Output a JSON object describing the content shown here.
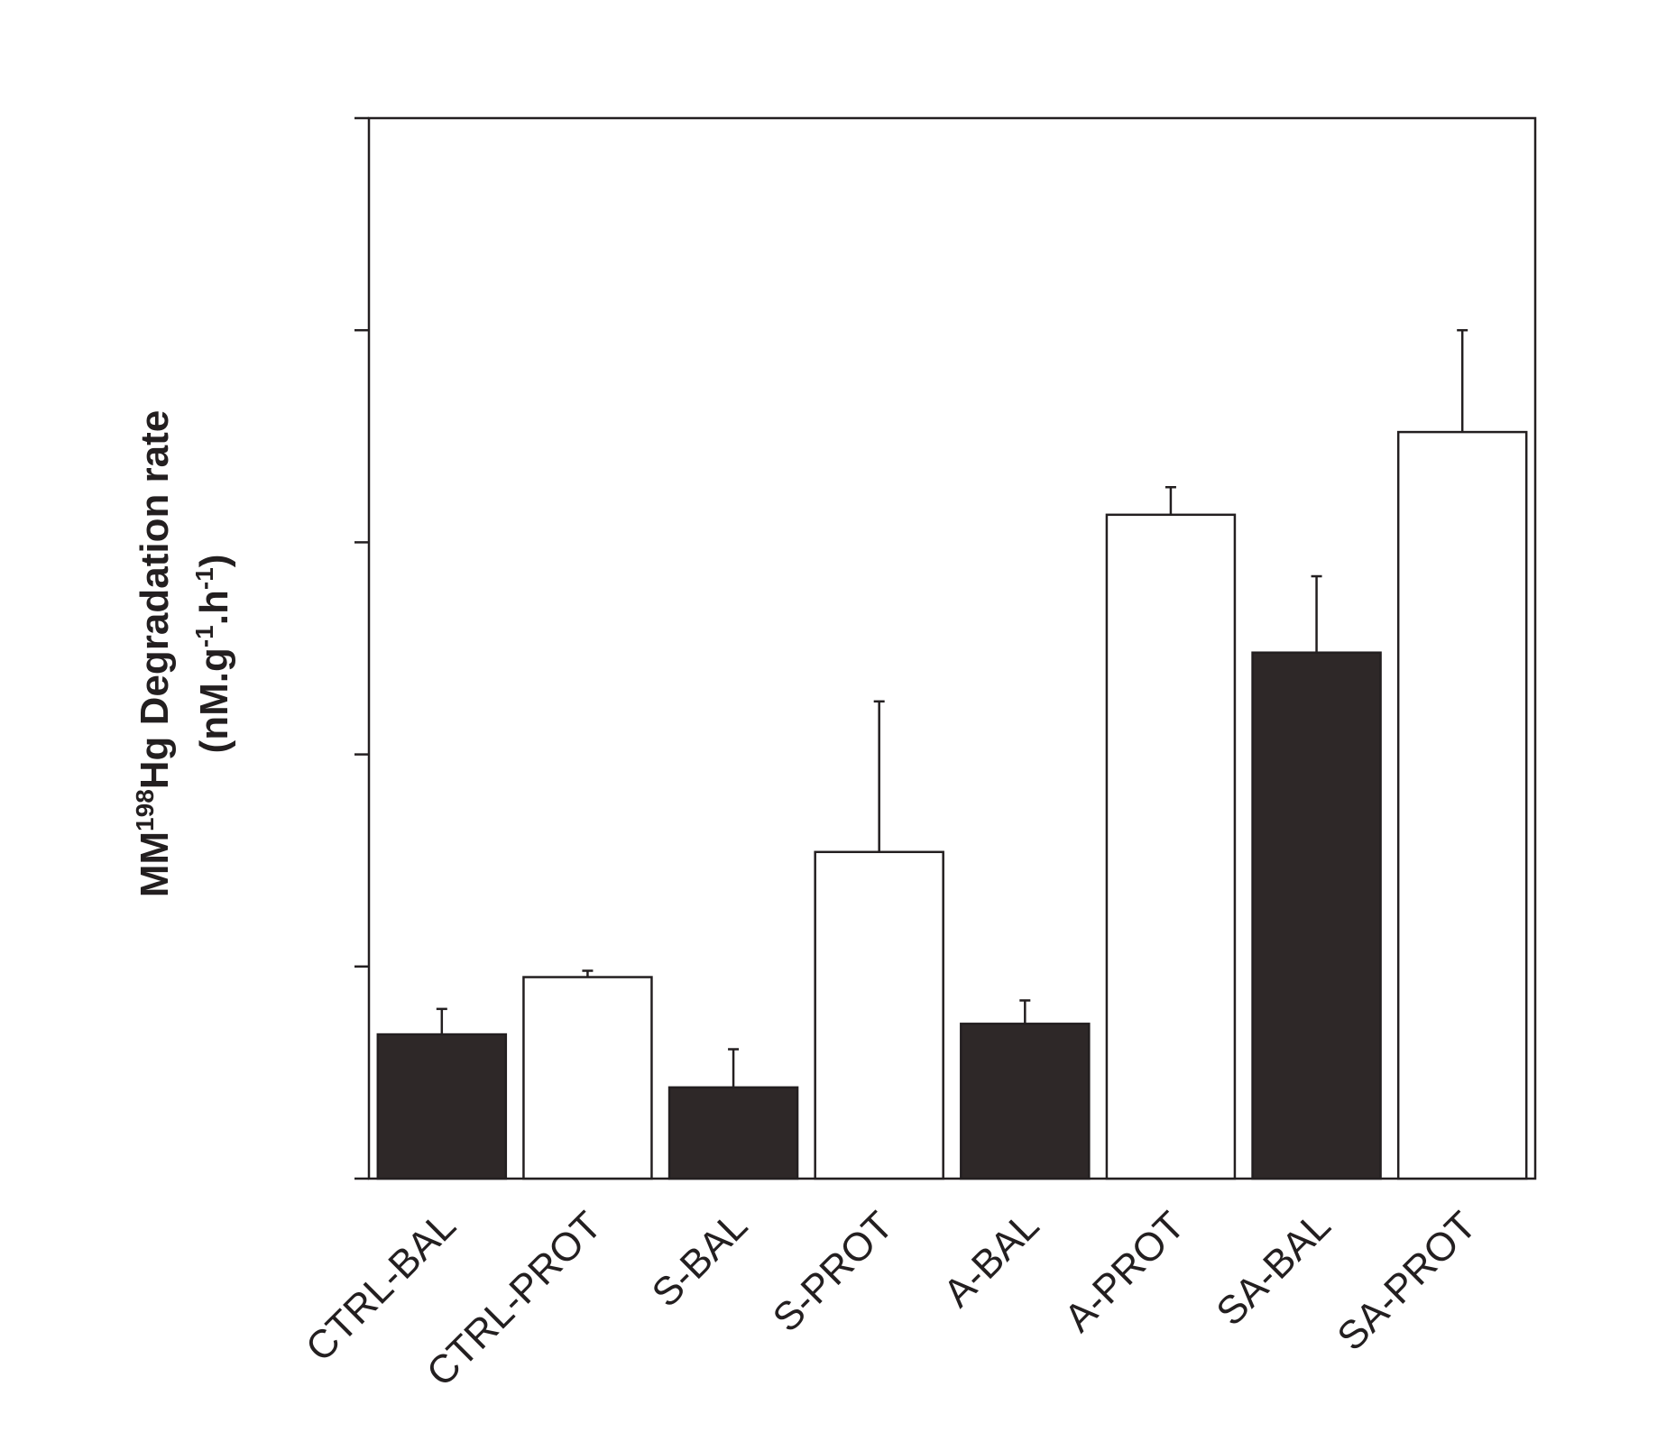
{
  "chart_data": {
    "type": "bar",
    "title": "",
    "xlabel": "",
    "ylabel": {
      "line1_prefix": "MM",
      "line1_sup": "198",
      "line1_suffix": "Hg Degradation rate",
      "line2_open": "(nM.g",
      "line2_sup1": "-1",
      "line2_mid": ".h",
      "line2_sup2": "-1",
      "line2_close": ")"
    },
    "y_tick_labels_shown": false,
    "y_ticks": [
      0,
      1,
      2,
      3,
      4,
      5
    ],
    "ylim": [
      0,
      5
    ],
    "grid": false,
    "categories": [
      "CTRL-BAL",
      "CTRL-PROT",
      "S-BAL",
      "S-PROT",
      "A-BAL",
      "A-PROT",
      "SA-BAL",
      "SA-PROT"
    ],
    "values": [
      0.68,
      0.95,
      0.43,
      1.54,
      0.73,
      3.13,
      2.48,
      3.52
    ],
    "errors": [
      0.12,
      0.03,
      0.18,
      0.71,
      0.11,
      0.13,
      0.36,
      0.48
    ],
    "fills": [
      "dark",
      "light",
      "dark",
      "light",
      "dark",
      "light",
      "dark",
      "light"
    ],
    "colors": {
      "dark": "#2e2828",
      "light": "#ffffff",
      "stroke": "#231f20"
    }
  }
}
